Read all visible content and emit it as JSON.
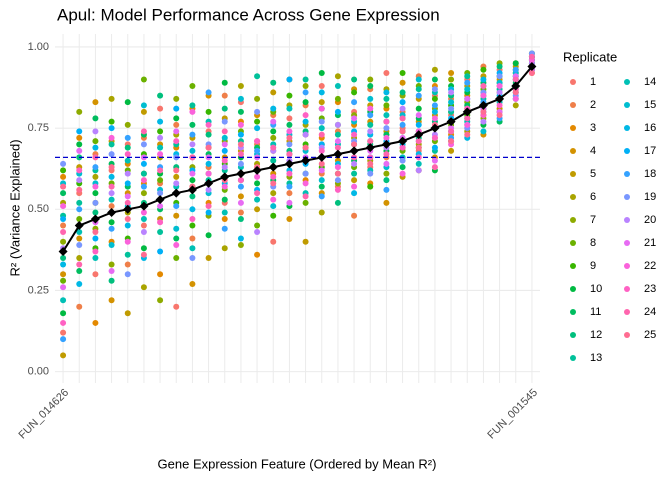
{
  "chart_data": {
    "type": "scatter",
    "title": "Apul: Model Performance Across Gene Expression",
    "x_label": "Gene Expression Feature (Ordered by Mean R²)",
    "y_label": "R² (Variance Explained)",
    "legend_title": "Replicate",
    "legend": "right",
    "grid": true,
    "ylim": [
      -0.035,
      1.04
    ],
    "yticks": [
      {
        "value": 0,
        "label": "0.00"
      },
      {
        "value": 0.25,
        "label": "0.25"
      },
      {
        "value": 0.5,
        "label": "0.50"
      },
      {
        "value": 0.75,
        "label": "0.75"
      },
      {
        "value": 1,
        "label": "1.00"
      }
    ],
    "categories": [
      "FUN_014626",
      null,
      null,
      null,
      null,
      null,
      null,
      null,
      null,
      null,
      null,
      null,
      null,
      null,
      null,
      null,
      null,
      null,
      null,
      null,
      null,
      null,
      null,
      null,
      null,
      null,
      null,
      null,
      null,
      "FUN_001545"
    ],
    "mean_values": [
      0.37,
      0.45,
      0.47,
      0.49,
      0.5,
      0.51,
      0.53,
      0.55,
      0.56,
      0.58,
      0.6,
      0.61,
      0.62,
      0.63,
      0.64,
      0.65,
      0.66,
      0.67,
      0.68,
      0.69,
      0.7,
      0.71,
      0.73,
      0.75,
      0.77,
      0.8,
      0.82,
      0.84,
      0.88,
      0.94
    ],
    "mean_color": "#000000",
    "hline": 0.66,
    "hline_color": "#0000cd",
    "series": [
      {
        "name": "1",
        "color": "#F8766D",
        "values": [
          0.12,
          0.55,
          0.3,
          0.62,
          0.7,
          0.45,
          0.81,
          0.2,
          0.66,
          0.74,
          0.52,
          0.83,
          0.71,
          0.4,
          0.78,
          0.69,
          0.88,
          0.57,
          0.8,
          0.63,
          0.92,
          0.75,
          0.68,
          0.85,
          0.79,
          0.9,
          0.86,
          0.93,
          0.95,
          0.97
        ]
      },
      {
        "name": "2",
        "color": "#EF7F49",
        "values": [
          0.45,
          0.2,
          0.67,
          0.51,
          0.33,
          0.72,
          0.58,
          0.76,
          0.41,
          0.63,
          0.85,
          0.49,
          0.7,
          0.79,
          0.55,
          0.82,
          0.61,
          0.74,
          0.48,
          0.87,
          0.66,
          0.8,
          0.91,
          0.72,
          0.84,
          0.76,
          0.94,
          0.88,
          0.91,
          0.96
        ]
      },
      {
        "name": "3",
        "color": "#E38900",
        "values": [
          0.6,
          0.72,
          0.15,
          0.4,
          0.64,
          0.58,
          0.3,
          0.69,
          0.81,
          0.52,
          0.47,
          0.77,
          0.36,
          0.68,
          0.9,
          0.59,
          0.72,
          0.83,
          0.76,
          0.58,
          0.81,
          0.69,
          0.62,
          0.88,
          0.73,
          0.85,
          0.79,
          0.86,
          0.93,
          0.95
        ]
      },
      {
        "name": "4",
        "color": "#D39200",
        "values": [
          0.3,
          0.41,
          0.83,
          0.22,
          0.55,
          0.61,
          0.7,
          0.48,
          0.27,
          0.85,
          0.66,
          0.54,
          0.79,
          0.61,
          0.47,
          0.73,
          0.55,
          0.65,
          0.87,
          0.77,
          0.52,
          0.89,
          0.77,
          0.66,
          0.92,
          0.81,
          0.73,
          0.9,
          0.86,
          0.98
        ]
      },
      {
        "name": "5",
        "color": "#C09B00",
        "values": [
          0.05,
          0.63,
          0.52,
          0.71,
          0.18,
          0.8,
          0.47,
          0.6,
          0.72,
          0.35,
          0.78,
          0.68,
          0.5,
          0.86,
          0.71,
          0.4,
          0.83,
          0.7,
          0.59,
          0.82,
          0.74,
          0.6,
          0.84,
          0.79,
          0.68,
          0.88,
          0.91,
          0.81,
          0.94,
          0.92
        ]
      },
      {
        "name": "6",
        "color": "#A9A400",
        "values": [
          0.52,
          0.35,
          0.6,
          0.84,
          0.49,
          0.26,
          0.66,
          0.73,
          0.57,
          0.69,
          0.38,
          0.88,
          0.64,
          0.55,
          0.82,
          0.76,
          0.49,
          0.91,
          0.72,
          0.65,
          0.87,
          0.78,
          0.7,
          0.93,
          0.8,
          0.74,
          0.85,
          0.89,
          0.82,
          0.96
        ]
      },
      {
        "name": "7",
        "color": "#8EAB00",
        "values": [
          0.4,
          0.8,
          0.44,
          0.33,
          0.76,
          0.55,
          0.22,
          0.84,
          0.63,
          0.48,
          0.71,
          0.39,
          0.84,
          0.72,
          0.6,
          0.88,
          0.7,
          0.58,
          0.79,
          0.9,
          0.61,
          0.85,
          0.74,
          0.81,
          0.9,
          0.83,
          0.78,
          0.95,
          0.9,
          0.93
        ]
      },
      {
        "name": "8",
        "color": "#6BB100",
        "values": [
          0.28,
          0.47,
          0.71,
          0.58,
          0.62,
          0.9,
          0.59,
          0.35,
          0.88,
          0.61,
          0.56,
          0.74,
          0.45,
          0.8,
          0.67,
          0.52,
          0.78,
          0.84,
          0.63,
          0.71,
          0.82,
          0.68,
          0.88,
          0.71,
          0.76,
          0.92,
          0.87,
          0.8,
          0.92,
          0.97
        ]
      },
      {
        "name": "9",
        "color": "#39B600",
        "values": [
          0.62,
          0.58,
          0.38,
          0.77,
          0.41,
          0.67,
          0.74,
          0.52,
          0.45,
          0.8,
          0.64,
          0.59,
          0.77,
          0.48,
          0.85,
          0.7,
          0.63,
          0.76,
          0.86,
          0.57,
          0.77,
          0.92,
          0.69,
          0.84,
          0.82,
          0.79,
          0.93,
          0.84,
          0.87,
          0.95
        ]
      },
      {
        "name": "10",
        "color": "#00BA42",
        "values": [
          0.18,
          0.7,
          0.55,
          0.46,
          0.83,
          0.38,
          0.61,
          0.78,
          0.59,
          0.42,
          0.89,
          0.66,
          0.58,
          0.74,
          0.51,
          0.83,
          0.92,
          0.61,
          0.7,
          0.8,
          0.68,
          0.74,
          0.81,
          0.62,
          0.88,
          0.86,
          0.76,
          0.91,
          0.95,
          0.94
        ]
      },
      {
        "name": "11",
        "color": "#00BD5F",
        "values": [
          0.55,
          0.31,
          0.78,
          0.64,
          0.57,
          0.73,
          0.5,
          0.41,
          0.76,
          0.67,
          0.53,
          0.8,
          0.69,
          0.59,
          0.76,
          0.61,
          0.57,
          0.79,
          0.65,
          0.88,
          0.73,
          0.63,
          0.78,
          0.9,
          0.71,
          0.82,
          0.89,
          0.77,
          0.89,
          0.98
        ]
      },
      {
        "name": "12",
        "color": "#00BF7D",
        "values": [
          0.35,
          0.66,
          0.49,
          0.28,
          0.69,
          0.52,
          0.85,
          0.63,
          0.54,
          0.73,
          0.81,
          0.47,
          0.62,
          0.89,
          0.68,
          0.74,
          0.81,
          0.52,
          0.9,
          0.7,
          0.59,
          0.86,
          0.72,
          0.77,
          0.85,
          0.78,
          0.81,
          0.94,
          0.84,
          0.93
        ]
      },
      {
        "name": "13",
        "color": "#00C19A",
        "values": [
          0.48,
          0.52,
          0.62,
          0.7,
          0.36,
          0.61,
          0.43,
          0.7,
          0.82,
          0.59,
          0.62,
          0.71,
          0.91,
          0.65,
          0.58,
          0.9,
          0.66,
          0.73,
          0.61,
          0.76,
          0.84,
          0.71,
          0.87,
          0.68,
          0.8,
          0.91,
          0.84,
          0.87,
          0.91,
          0.96
        ]
      },
      {
        "name": "14",
        "color": "#00C0B5",
        "values": [
          0.22,
          0.43,
          0.35,
          0.53,
          0.65,
          0.47,
          0.69,
          0.57,
          0.38,
          0.77,
          0.49,
          0.63,
          0.53,
          0.7,
          0.81,
          0.55,
          0.75,
          0.88,
          0.68,
          0.62,
          0.79,
          0.66,
          0.64,
          0.86,
          0.74,
          0.77,
          0.88,
          0.83,
          0.88,
          0.95
        ]
      },
      {
        "name": "15",
        "color": "#00BDD0",
        "values": [
          0.58,
          0.61,
          0.58,
          0.39,
          0.51,
          0.82,
          0.56,
          0.44,
          0.68,
          0.55,
          0.72,
          0.84,
          0.67,
          0.51,
          0.73,
          0.68,
          0.59,
          0.7,
          0.77,
          0.84,
          0.63,
          0.79,
          0.9,
          0.75,
          0.83,
          0.87,
          0.74,
          0.89,
          0.92,
          0.97
        ]
      },
      {
        "name": "16",
        "color": "#00B8E5",
        "values": [
          0.33,
          0.27,
          0.69,
          0.6,
          0.45,
          0.35,
          0.77,
          0.67,
          0.5,
          0.64,
          0.58,
          0.41,
          0.75,
          0.81,
          0.62,
          0.77,
          0.86,
          0.64,
          0.55,
          0.73,
          0.86,
          0.7,
          0.67,
          0.8,
          0.87,
          0.72,
          0.9,
          0.85,
          0.86,
          0.94
        ]
      },
      {
        "name": "17",
        "color": "#00B0F6",
        "values": [
          0.47,
          0.74,
          0.41,
          0.75,
          0.58,
          0.64,
          0.37,
          0.81,
          0.62,
          0.49,
          0.68,
          0.73,
          0.56,
          0.63,
          0.9,
          0.64,
          0.7,
          0.8,
          0.74,
          0.66,
          0.71,
          0.83,
          0.76,
          0.69,
          0.78,
          0.84,
          0.8,
          0.92,
          0.9,
          0.96
        ]
      },
      {
        "name": "18",
        "color": "#35A2FF",
        "values": [
          0.1,
          0.5,
          0.63,
          0.44,
          0.72,
          0.57,
          0.63,
          0.51,
          0.73,
          0.86,
          0.44,
          0.57,
          0.68,
          0.76,
          0.57,
          0.86,
          0.54,
          0.67,
          0.83,
          0.79,
          0.56,
          0.76,
          0.85,
          0.82,
          0.72,
          0.89,
          0.83,
          0.78,
          0.93,
          0.93
        ]
      },
      {
        "name": "19",
        "color": "#7997FF",
        "values": [
          0.64,
          0.39,
          0.52,
          0.67,
          0.3,
          0.7,
          0.55,
          0.66,
          0.35,
          0.7,
          0.77,
          0.64,
          0.8,
          0.57,
          0.7,
          0.61,
          0.77,
          0.59,
          0.71,
          0.61,
          0.75,
          0.65,
          0.71,
          0.87,
          0.81,
          0.75,
          0.86,
          0.91,
          0.85,
          0.98
        ]
      },
      {
        "name": "20",
        "color": "#B983FF",
        "values": [
          0.38,
          0.59,
          0.74,
          0.55,
          0.61,
          0.43,
          0.72,
          0.58,
          0.7,
          0.56,
          0.63,
          0.69,
          0.43,
          0.68,
          0.65,
          0.73,
          0.69,
          0.76,
          0.64,
          0.74,
          0.69,
          0.81,
          0.62,
          0.73,
          0.86,
          0.8,
          0.77,
          0.86,
          0.88,
          0.95
        ]
      },
      {
        "name": "21",
        "color": "#E76BF3",
        "values": [
          0.26,
          0.68,
          0.46,
          0.31,
          0.54,
          0.66,
          0.51,
          0.74,
          0.61,
          0.66,
          0.7,
          0.52,
          0.66,
          0.77,
          0.52,
          0.66,
          0.62,
          0.71,
          0.78,
          0.68,
          0.64,
          0.72,
          0.79,
          0.65,
          0.75,
          0.84,
          0.81,
          0.8,
          0.91,
          0.93
        ]
      },
      {
        "name": "22",
        "color": "#FA62DB",
        "values": [
          0.51,
          0.45,
          0.57,
          0.72,
          0.4,
          0.49,
          0.67,
          0.39,
          0.8,
          0.61,
          0.57,
          0.76,
          0.6,
          0.53,
          0.74,
          0.58,
          0.81,
          0.63,
          0.57,
          0.81,
          0.72,
          0.61,
          0.74,
          0.78,
          0.7,
          0.76,
          0.85,
          0.88,
          0.84,
          0.96
        ]
      },
      {
        "name": "23",
        "color": "#FF61C3",
        "values": [
          0.15,
          0.62,
          0.37,
          0.49,
          0.67,
          0.59,
          0.46,
          0.71,
          0.47,
          0.76,
          0.65,
          0.59,
          0.71,
          0.6,
          0.61,
          0.79,
          0.68,
          0.56,
          0.73,
          0.66,
          0.77,
          0.69,
          0.66,
          0.72,
          0.77,
          0.81,
          0.79,
          0.82,
          0.87,
          0.94
        ]
      },
      {
        "name": "24",
        "color": "#FF65AE",
        "values": [
          0.43,
          0.33,
          0.66,
          0.57,
          0.52,
          0.74,
          0.62,
          0.55,
          0.66,
          0.51,
          0.74,
          0.67,
          0.55,
          0.69,
          0.67,
          0.54,
          0.73,
          0.69,
          0.66,
          0.71,
          0.67,
          0.78,
          0.71,
          0.63,
          0.74,
          0.78,
          0.88,
          0.84,
          0.9,
          0.97
        ]
      },
      {
        "name": "25",
        "color": "#FF6C91",
        "values": [
          0.57,
          0.56,
          0.43,
          0.63,
          0.47,
          0.36,
          0.53,
          0.62,
          0.57,
          0.69,
          0.59,
          0.7,
          0.63,
          0.58,
          0.72,
          0.69,
          0.64,
          0.61,
          0.7,
          0.64,
          0.7,
          0.74,
          0.69,
          0.76,
          0.71,
          0.73,
          0.8,
          0.79,
          0.86,
          0.92
        ]
      }
    ]
  }
}
